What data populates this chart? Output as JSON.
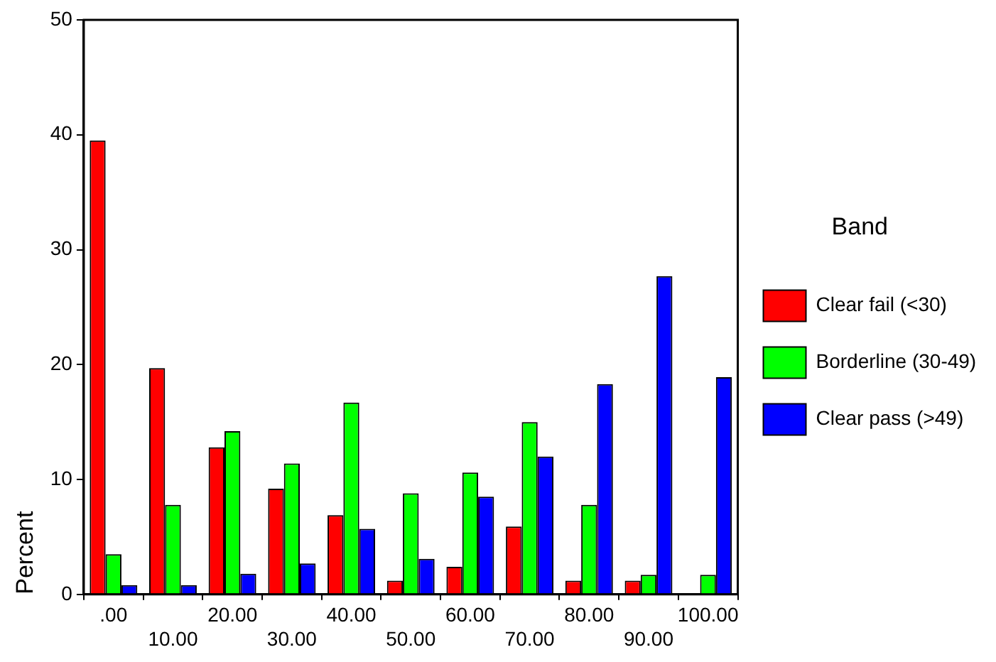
{
  "chart_data": {
    "type": "bar",
    "ylabel": "Percent",
    "legend_title": "Band",
    "legend": "right",
    "categories": [
      ".00",
      "10.00",
      "20.00",
      "30.00",
      "40.00",
      "50.00",
      "60.00",
      "70.00",
      "80.00",
      "90.00",
      "100.00"
    ],
    "series": [
      {
        "name": "Clear fail (<30)",
        "color": "#ff0000",
        "values": [
          39.5,
          19.7,
          12.8,
          9.2,
          6.9,
          1.2,
          2.4,
          5.9,
          1.2,
          1.2,
          0
        ]
      },
      {
        "name": "Borderline (30-49)",
        "color": "#00ff00",
        "values": [
          3.5,
          7.8,
          14.2,
          11.4,
          16.7,
          8.8,
          10.6,
          15.0,
          7.8,
          1.7,
          1.7
        ]
      },
      {
        "name": "Clear pass (>49)",
        "color": "#0000ff",
        "values": [
          0.8,
          0.8,
          1.8,
          2.7,
          5.7,
          3.1,
          8.5,
          12.0,
          18.3,
          27.7,
          18.9
        ]
      }
    ],
    "ylim": [
      0,
      50
    ],
    "yticks": [
      0,
      10,
      20,
      30,
      40,
      50
    ],
    "grid": false
  }
}
